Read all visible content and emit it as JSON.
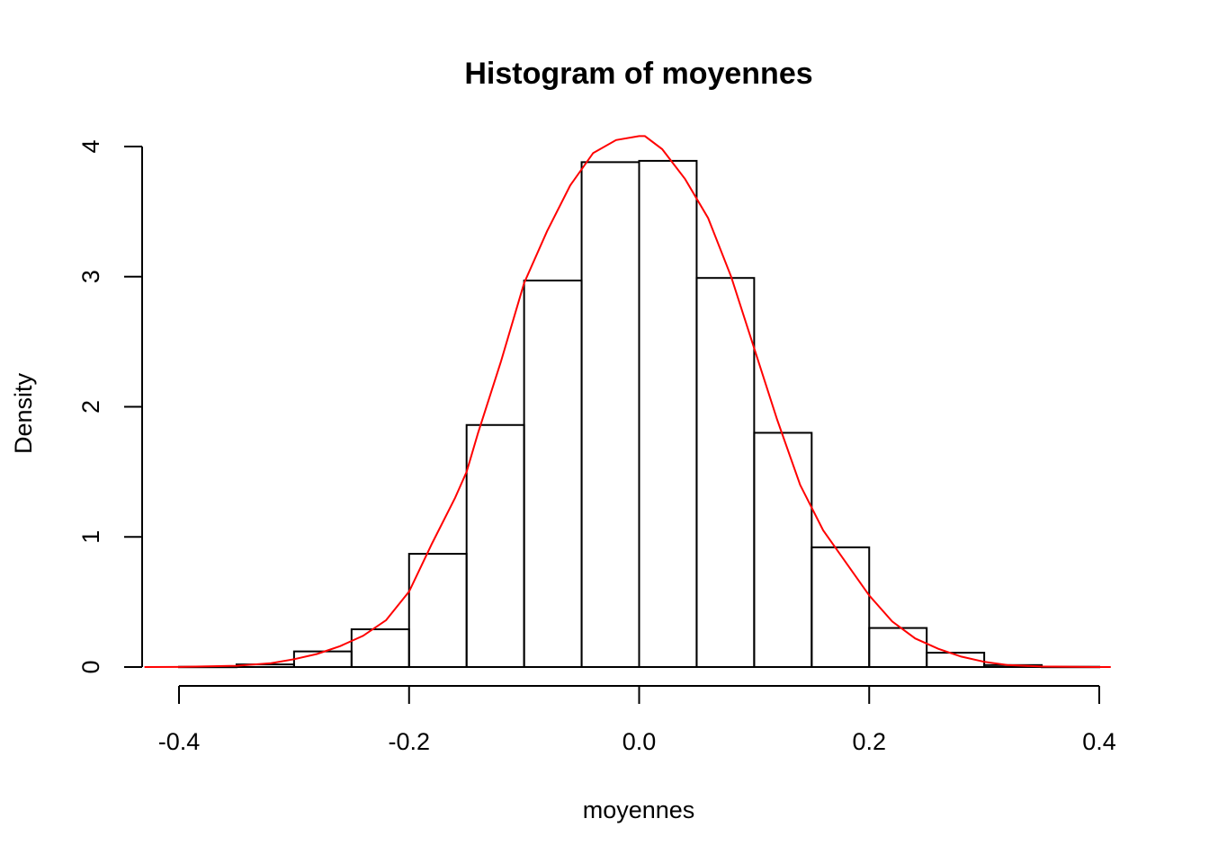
{
  "chart_data": {
    "type": "bar",
    "title": "Histogram of moyennes",
    "xlabel": "moyennes",
    "ylabel": "Density",
    "xlim": [
      -0.4,
      0.4
    ],
    "ylim": [
      0,
      4
    ],
    "x_ticks": [
      -0.4,
      -0.2,
      0.0,
      0.2,
      0.4
    ],
    "x_tick_labels": [
      "-0.4",
      "-0.2",
      "0.0",
      "0.2",
      "0.4"
    ],
    "y_ticks": [
      0,
      1,
      2,
      3,
      4
    ],
    "y_tick_labels": [
      "0",
      "1",
      "2",
      "3",
      "4"
    ],
    "bins": [
      {
        "x0": -0.4,
        "x1": -0.35,
        "density": 0.002
      },
      {
        "x0": -0.35,
        "x1": -0.3,
        "density": 0.02
      },
      {
        "x0": -0.3,
        "x1": -0.25,
        "density": 0.12
      },
      {
        "x0": -0.25,
        "x1": -0.2,
        "density": 0.29
      },
      {
        "x0": -0.2,
        "x1": -0.15,
        "density": 0.87
      },
      {
        "x0": -0.15,
        "x1": -0.1,
        "density": 1.86
      },
      {
        "x0": -0.1,
        "x1": -0.05,
        "density": 2.97
      },
      {
        "x0": -0.05,
        "x1": 0.0,
        "density": 3.88
      },
      {
        "x0": 0.0,
        "x1": 0.05,
        "density": 3.89
      },
      {
        "x0": 0.05,
        "x1": 0.1,
        "density": 2.99
      },
      {
        "x0": 0.1,
        "x1": 0.15,
        "density": 1.8
      },
      {
        "x0": 0.15,
        "x1": 0.2,
        "density": 0.92
      },
      {
        "x0": 0.2,
        "x1": 0.25,
        "density": 0.3
      },
      {
        "x0": 0.25,
        "x1": 0.3,
        "density": 0.11
      },
      {
        "x0": 0.3,
        "x1": 0.35,
        "density": 0.015
      },
      {
        "x0": 0.35,
        "x1": 0.4,
        "density": 0.002
      }
    ],
    "density_curve": {
      "color": "#ff0000",
      "x": [
        -0.43,
        -0.4,
        -0.35,
        -0.32,
        -0.3,
        -0.28,
        -0.26,
        -0.24,
        -0.22,
        -0.2,
        -0.18,
        -0.16,
        -0.15,
        -0.14,
        -0.12,
        -0.1,
        -0.08,
        -0.06,
        -0.04,
        -0.02,
        0.0,
        0.005,
        0.02,
        0.04,
        0.06,
        0.08,
        0.1,
        0.12,
        0.14,
        0.16,
        0.18,
        0.2,
        0.22,
        0.24,
        0.26,
        0.28,
        0.3,
        0.32,
        0.35,
        0.4,
        0.41
      ],
      "y": [
        0.0,
        0.001,
        0.01,
        0.03,
        0.06,
        0.1,
        0.16,
        0.24,
        0.36,
        0.58,
        0.95,
        1.3,
        1.5,
        1.8,
        2.35,
        2.95,
        3.35,
        3.7,
        3.95,
        4.05,
        4.08,
        4.08,
        3.98,
        3.75,
        3.45,
        3.0,
        2.45,
        1.9,
        1.4,
        1.05,
        0.8,
        0.55,
        0.35,
        0.22,
        0.14,
        0.08,
        0.04,
        0.015,
        0.004,
        0.0,
        0.0
      ]
    }
  }
}
